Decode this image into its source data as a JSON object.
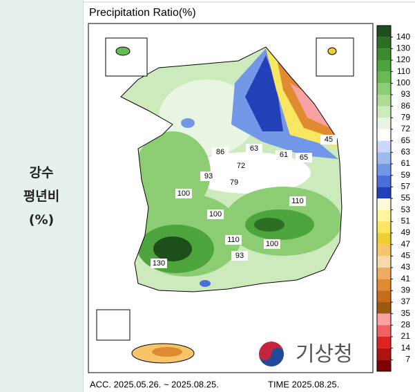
{
  "side_label": [
    "강수",
    "평년비",
    "(%)"
  ],
  "title": "Precipitation Ratio(%)",
  "footer": {
    "accumulation": "ACC. 2025.05.26. ~ 2025.08.25.",
    "time": "TIME 2025.08.25."
  },
  "logo": "기상청",
  "map": {
    "contour_labels": [
      "45",
      "63",
      "61",
      "65",
      "86",
      "72",
      "93",
      "79",
      "100",
      "100",
      "110",
      "110",
      "100",
      "93",
      "130"
    ]
  },
  "colorbar": {
    "labels": [
      "140",
      "130",
      "120",
      "110",
      "100",
      "93",
      "86",
      "79",
      "72",
      "65",
      "63",
      "61",
      "59",
      "57",
      "55",
      "53",
      "51",
      "49",
      "47",
      "45",
      "43",
      "41",
      "39",
      "37",
      "35",
      "28",
      "21",
      "14",
      "7"
    ],
    "colors": [
      "#1d4f1d",
      "#2b6e24",
      "#3b8b2e",
      "#4ea43c",
      "#68ba52",
      "#8ccc72",
      "#aedb96",
      "#cdeabd",
      "#e9f5e3",
      "#ffffff",
      "#cad9f8",
      "#9db9f0",
      "#7197e6",
      "#4b6fda",
      "#2440b8",
      "#fffbd6",
      "#fff59c",
      "#f8e660",
      "#f0cf34",
      "#f7c46a",
      "#f8d9aa",
      "#f0aa62",
      "#e08a32",
      "#c26c1c",
      "#9b5a12",
      "#f8a2a2",
      "#f06262",
      "#dd2222",
      "#b01212",
      "#7e0000"
    ]
  }
}
